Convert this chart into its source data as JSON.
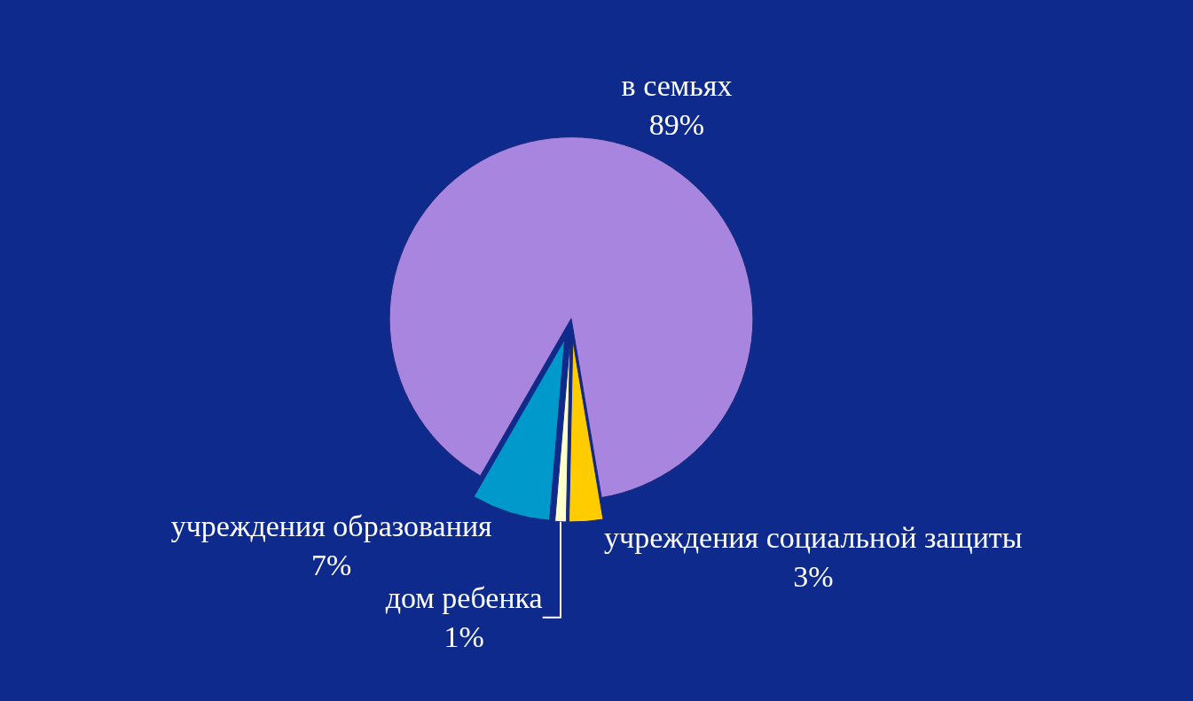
{
  "chart_data": {
    "type": "pie",
    "categories": [
      "в семьях",
      "учреждения социальной защиты",
      "дом ребенка",
      "учреждения образования"
    ],
    "values": [
      89,
      3,
      1,
      7
    ],
    "value_labels": [
      "89%",
      "3%",
      "1%",
      "7%"
    ],
    "colors": [
      "#a885de",
      "#ffcc00",
      "#ffffcc",
      "#0099cc"
    ],
    "legend": false
  }
}
